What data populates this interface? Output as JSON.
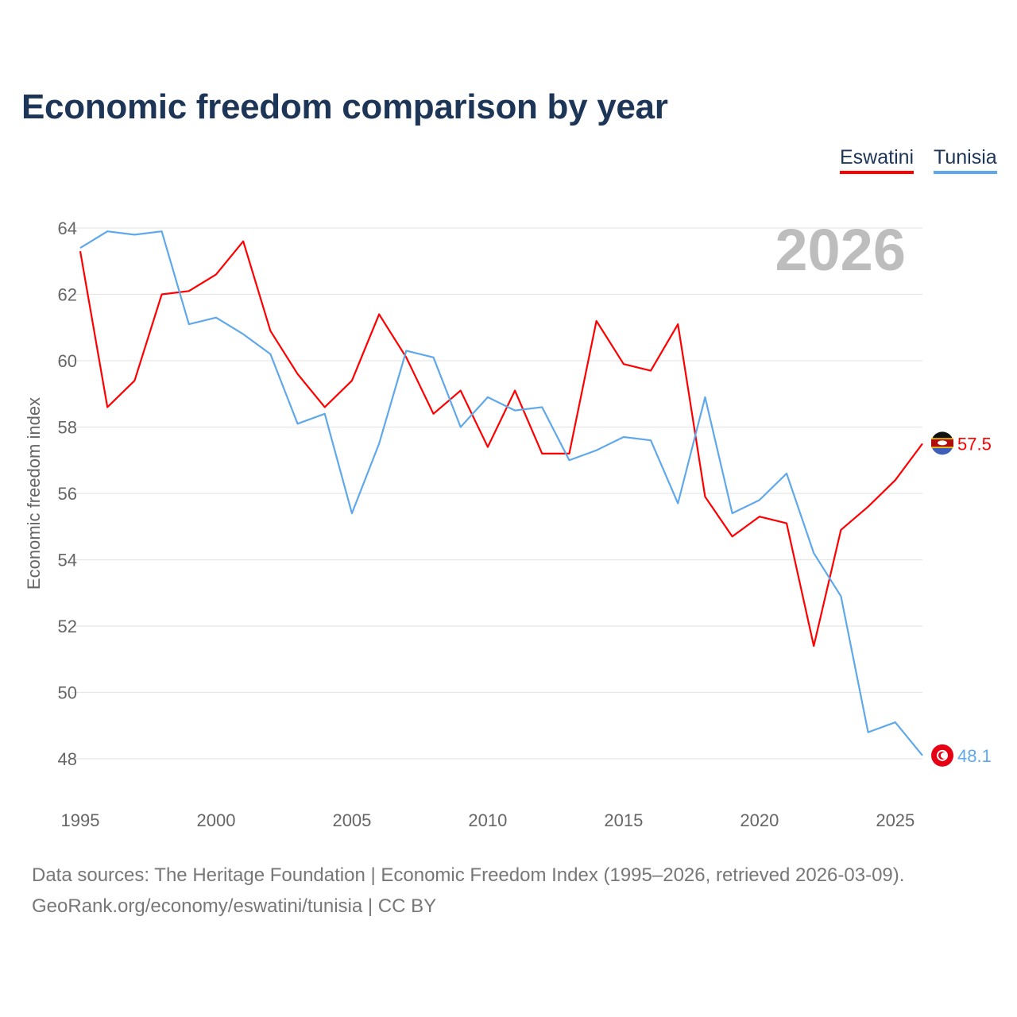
{
  "chart_data": {
    "type": "line",
    "title": "Economic freedom comparison by year",
    "xlabel": "",
    "ylabel": "Economic freedom index",
    "xlim": [
      1995,
      2026
    ],
    "ylim": [
      48,
      64
    ],
    "x_ticks": [
      "1995",
      "2000",
      "2005",
      "2010",
      "2015",
      "2020",
      "2025"
    ],
    "y_ticks": [
      "48",
      "50",
      "52",
      "54",
      "56",
      "58",
      "60",
      "62",
      "64"
    ],
    "grid": true,
    "legend_position": "top-right",
    "year_watermark": "2026",
    "x": [
      1995,
      1996,
      1997,
      1998,
      1999,
      2000,
      2001,
      2002,
      2003,
      2004,
      2005,
      2006,
      2007,
      2008,
      2009,
      2010,
      2011,
      2012,
      2013,
      2014,
      2015,
      2016,
      2017,
      2018,
      2019,
      2020,
      2021,
      2022,
      2023,
      2024,
      2025,
      2026
    ],
    "series": [
      {
        "name": "Eswatini",
        "color": "#ff0000",
        "end_label": "57.5",
        "flag": "eswatini-flag",
        "values": [
          63.3,
          58.6,
          59.4,
          62.0,
          62.1,
          62.6,
          63.6,
          60.9,
          59.6,
          58.6,
          59.4,
          61.4,
          60.1,
          58.4,
          59.1,
          57.4,
          59.1,
          57.2,
          57.2,
          61.2,
          59.9,
          59.7,
          61.1,
          55.9,
          54.7,
          55.3,
          55.1,
          51.4,
          54.9,
          55.6,
          56.4,
          57.5
        ]
      },
      {
        "name": "Tunisia",
        "color": "#5fa8ec",
        "end_label": "48.1",
        "flag": "tunisia-flag",
        "values": [
          63.4,
          63.9,
          63.8,
          63.9,
          61.1,
          61.3,
          60.8,
          60.2,
          58.1,
          58.4,
          55.4,
          57.5,
          60.3,
          60.1,
          58.0,
          58.9,
          58.5,
          58.6,
          57.0,
          57.3,
          57.7,
          57.6,
          55.7,
          58.9,
          55.4,
          55.8,
          56.6,
          54.2,
          52.9,
          48.8,
          49.1,
          48.1
        ]
      }
    ]
  },
  "footer": {
    "line1": "Data sources: The Heritage Foundation | Economic Freedom Index (1995–2026, retrieved 2026-03-09).",
    "line2": "GeoRank.org/economy/eswatini/tunisia | CC BY"
  }
}
